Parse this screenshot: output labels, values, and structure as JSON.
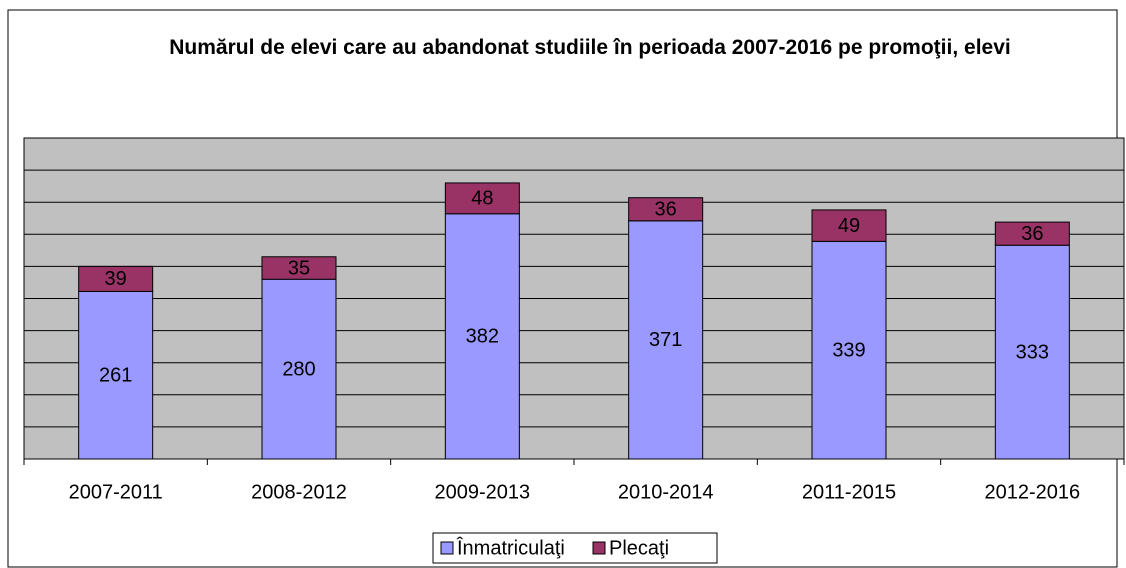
{
  "chart_data": {
    "type": "stacked_bar",
    "title": "Numărul de elevi care au abandonat studiile în perioada 2007-2016 pe promoţii, elevi",
    "categories": [
      "2007-2011",
      "2008-2012",
      "2009-2013",
      "2010-2014",
      "2011-2015",
      "2012-2016"
    ],
    "series": [
      {
        "name": "Înmatriculaţi",
        "color": "#9999ff",
        "values": [
          261,
          280,
          382,
          371,
          339,
          333
        ]
      },
      {
        "name": "Plecaţi",
        "color": "#993366",
        "values": [
          39,
          35,
          48,
          36,
          49,
          36
        ]
      }
    ],
    "ylim": [
      0,
      500
    ],
    "yticks": [
      0,
      50,
      100,
      150,
      200,
      250,
      300,
      350,
      400,
      450,
      500
    ],
    "grid": true,
    "plot_background": "#c0c0c0",
    "legend": "bottom"
  }
}
